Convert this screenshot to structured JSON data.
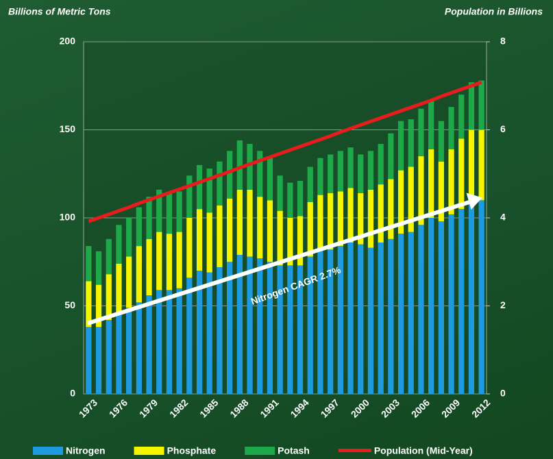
{
  "chart_data": {
    "type": "bar",
    "stacked": true,
    "y_label": "Billions of Metric Tons",
    "y2_label": "Population in Billions",
    "annotation": "Nitrogen CAGR 2.7%",
    "categories": [
      "1973",
      null,
      null,
      "1976",
      null,
      null,
      "1979",
      null,
      null,
      "1982",
      null,
      null,
      "1985",
      null,
      null,
      "1988",
      null,
      null,
      "1991",
      null,
      null,
      "1994",
      null,
      null,
      "1997",
      null,
      null,
      "2000",
      null,
      null,
      "2003",
      null,
      null,
      "2006",
      null,
      null,
      "2009",
      null,
      null,
      "2012"
    ],
    "series": [
      {
        "name": "Nitrogen",
        "color": "#1e9be0",
        "values": [
          38,
          38,
          42,
          45,
          49,
          52,
          56,
          59,
          59,
          60,
          66,
          70,
          69,
          72,
          75,
          79,
          78,
          77,
          75,
          73,
          73,
          73,
          78,
          82,
          82,
          84,
          86,
          85,
          83,
          86,
          88,
          91,
          92,
          96,
          100,
          98,
          102,
          105,
          108,
          110
        ]
      },
      {
        "name": "Phosphate",
        "color": "#f5f500",
        "values": [
          26,
          24,
          26,
          29,
          29,
          32,
          32,
          33,
          32,
          32,
          34,
          35,
          34,
          35,
          36,
          37,
          38,
          35,
          35,
          31,
          27,
          28,
          31,
          31,
          32,
          31,
          31,
          29,
          33,
          33,
          34,
          36,
          37,
          39,
          39,
          34,
          37,
          40,
          42,
          40
        ]
      },
      {
        "name": "Potash",
        "color": "#1da84a",
        "values": [
          20,
          19,
          20,
          22,
          22,
          22,
          24,
          24,
          23,
          23,
          24,
          25,
          25,
          25,
          27,
          28,
          26,
          26,
          24,
          20,
          20,
          20,
          20,
          21,
          22,
          23,
          23,
          22,
          22,
          23,
          26,
          28,
          27,
          27,
          28,
          23,
          24,
          25,
          27,
          28
        ]
      },
      {
        "name": "Population (Mid-Year)",
        "color": "#e81c1c",
        "type": "line",
        "axis": "y2",
        "values": [
          3.92,
          4.0,
          4.08,
          4.16,
          4.24,
          4.33,
          4.41,
          4.49,
          4.57,
          4.65,
          4.73,
          4.81,
          4.89,
          4.97,
          5.05,
          5.14,
          5.22,
          5.3,
          5.38,
          5.46,
          5.54,
          5.62,
          5.7,
          5.78,
          5.86,
          5.95,
          6.03,
          6.11,
          6.19,
          6.27,
          6.35,
          6.43,
          6.51,
          6.59,
          6.67,
          6.76,
          6.84,
          6.92,
          7.0,
          7.08
        ]
      }
    ],
    "ylim": [
      0,
      200
    ],
    "yticks": [
      0,
      50,
      100,
      150,
      200
    ],
    "y2lim": [
      0,
      8
    ],
    "y2ticks": [
      0,
      2,
      4,
      6,
      8
    ],
    "grid": true
  }
}
